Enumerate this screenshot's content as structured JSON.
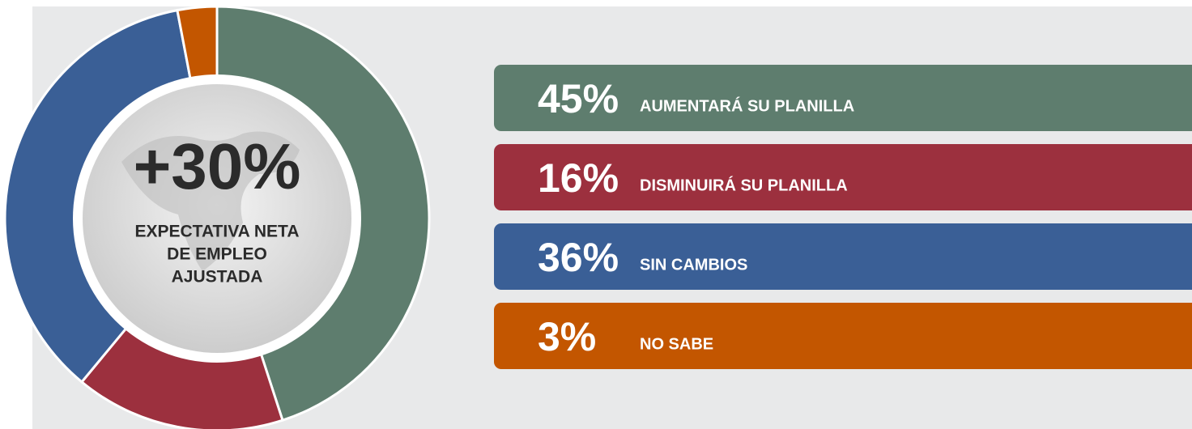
{
  "chart_data": {
    "type": "pie",
    "donut": true,
    "center_value": "+30%",
    "center_label": [
      "EXPECTATIVA NETA",
      "DE EMPLEO",
      "AJUSTADA"
    ],
    "categories": [
      "AUMENTARÁ SU PLANILLA",
      "DISMINUIRÁ SU PLANILLA",
      "SIN CAMBIOS",
      "NO SABE"
    ],
    "values": [
      45,
      16,
      36,
      3
    ],
    "value_labels": [
      "45%",
      "16%",
      "36%",
      "3%"
    ],
    "colors": [
      "#5e7d6e",
      "#9c303e",
      "#3a5f96",
      "#c35600"
    ]
  }
}
